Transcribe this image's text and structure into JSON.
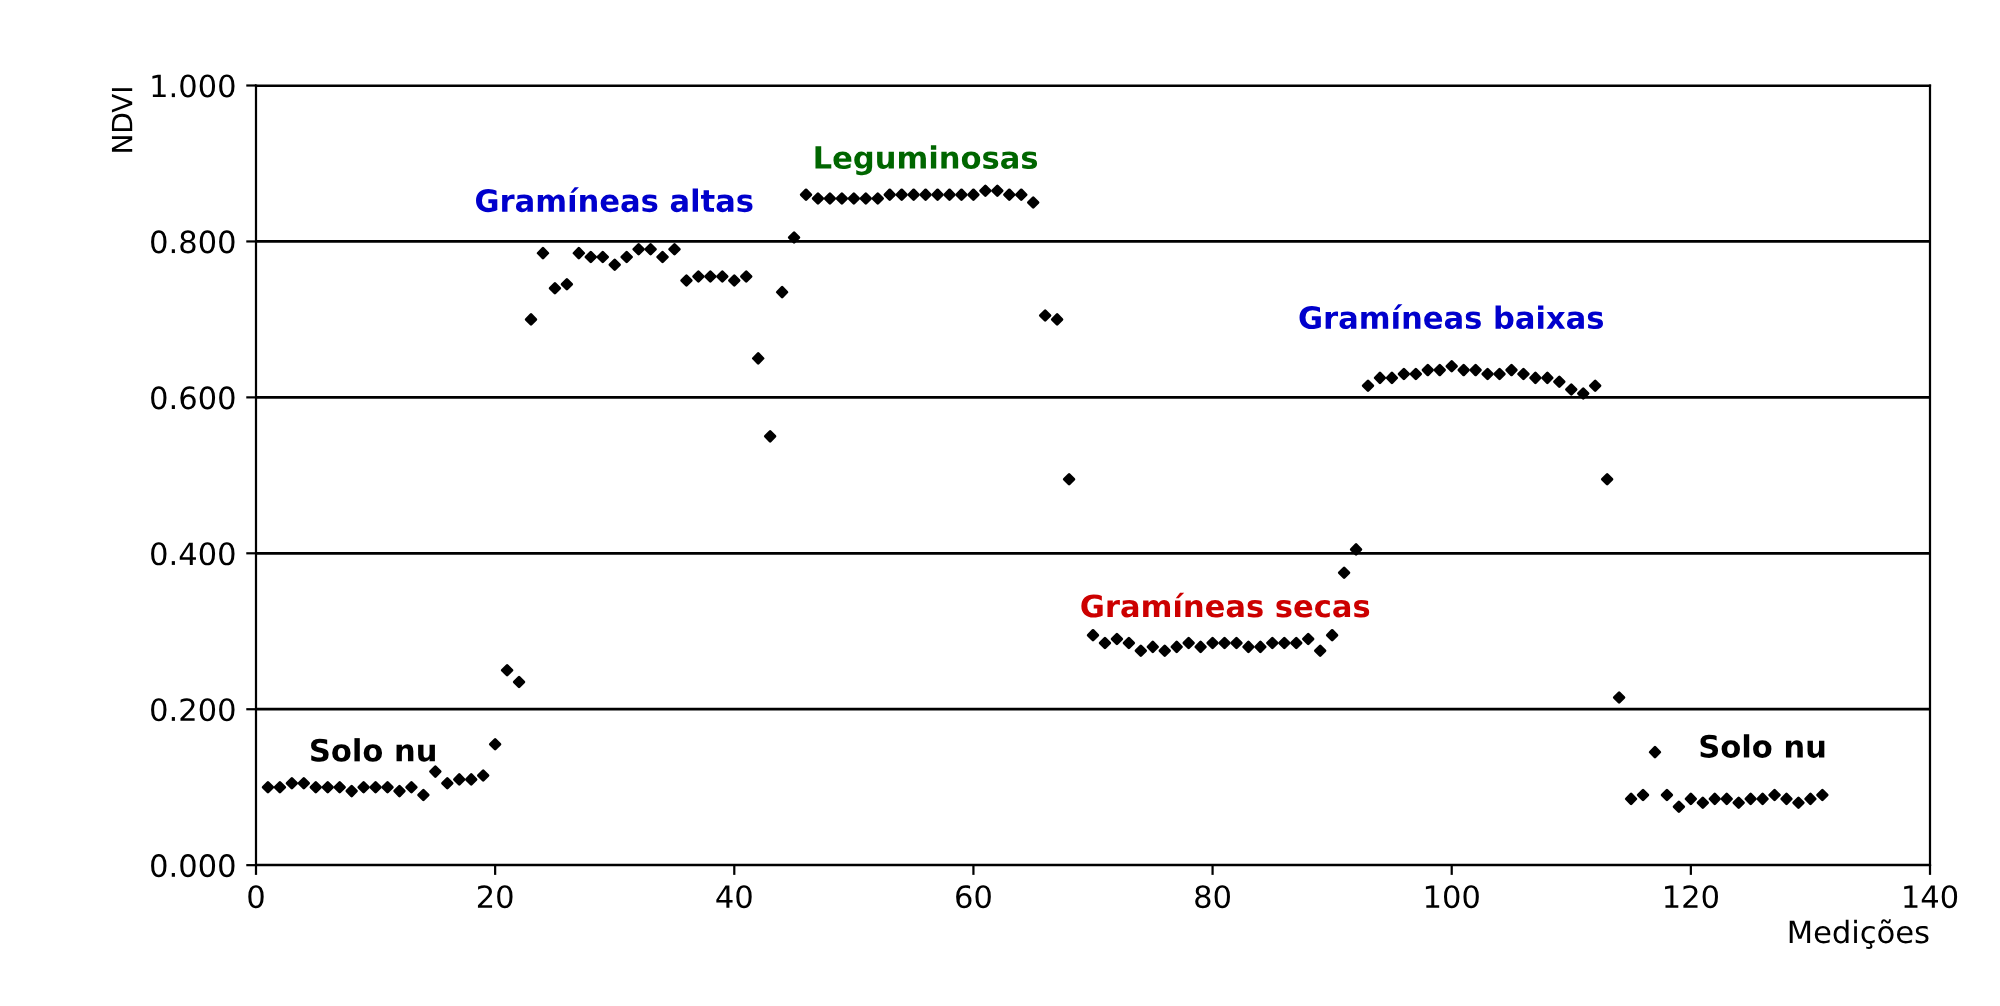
{
  "chart_data": {
    "type": "scatter",
    "xlabel": "Medições",
    "ylabel": "NDVI",
    "xlim": [
      0,
      140
    ],
    "xticks": [
      0,
      20,
      40,
      60,
      80,
      100,
      120,
      140
    ],
    "ylim": [
      0,
      1
    ],
    "yticks": [
      {
        "value": 0,
        "label": "0.000"
      },
      {
        "value": 0.2,
        "label": "0.200"
      },
      {
        "value": 0.4,
        "label": "0.400"
      },
      {
        "value": 0.6,
        "label": "0.600"
      },
      {
        "value": 0.8,
        "label": "0.800"
      },
      {
        "value": 1,
        "label": "1.000"
      }
    ],
    "grid": "y",
    "marker": "diamond",
    "series": [
      {
        "color": "#000000",
        "x": [
          1,
          2,
          3,
          4,
          5,
          6,
          7,
          8,
          9,
          10,
          11,
          12,
          13,
          14,
          15,
          16,
          17,
          18,
          19,
          20,
          21,
          22,
          23,
          24,
          25,
          26,
          27,
          28,
          29,
          30,
          31,
          32,
          33,
          34,
          35,
          36,
          37,
          38,
          39,
          40,
          41,
          42,
          43,
          44,
          45,
          46,
          47,
          48,
          49,
          50,
          51,
          52,
          53,
          54,
          55,
          56,
          57,
          58,
          59,
          60,
          61,
          62,
          63,
          64,
          65,
          66,
          67,
          68,
          70,
          71,
          72,
          73,
          74,
          75,
          76,
          77,
          78,
          79,
          80,
          81,
          82,
          83,
          84,
          85,
          86,
          87,
          88,
          89,
          90,
          91,
          92,
          93,
          94,
          95,
          96,
          97,
          98,
          99,
          100,
          101,
          102,
          103,
          104,
          105,
          106,
          107,
          108,
          109,
          110,
          111,
          112,
          113,
          114,
          115,
          116,
          117,
          118,
          119,
          120,
          121,
          122,
          123,
          124,
          125,
          126,
          127,
          128,
          129,
          130,
          131
        ],
        "values": [
          0.1,
          0.1,
          0.105,
          0.105,
          0.1,
          0.1,
          0.1,
          0.095,
          0.1,
          0.1,
          0.1,
          0.095,
          0.1,
          0.09,
          0.12,
          0.105,
          0.11,
          0.11,
          0.115,
          0.155,
          0.25,
          0.235,
          0.7,
          0.785,
          0.74,
          0.745,
          0.785,
          0.78,
          0.78,
          0.77,
          0.78,
          0.79,
          0.79,
          0.78,
          0.79,
          0.75,
          0.755,
          0.755,
          0.755,
          0.75,
          0.755,
          0.65,
          0.55,
          0.735,
          0.805,
          0.86,
          0.855,
          0.855,
          0.855,
          0.855,
          0.855,
          0.855,
          0.86,
          0.86,
          0.86,
          0.86,
          0.86,
          0.86,
          0.86,
          0.86,
          0.865,
          0.865,
          0.86,
          0.86,
          0.85,
          0.705,
          0.7,
          0.495,
          0.295,
          0.285,
          0.29,
          0.285,
          0.275,
          0.28,
          0.275,
          0.28,
          0.285,
          0.28,
          0.285,
          0.285,
          0.285,
          0.28,
          0.28,
          0.285,
          0.285,
          0.285,
          0.29,
          0.275,
          0.295,
          0.375,
          0.405,
          0.615,
          0.625,
          0.625,
          0.63,
          0.63,
          0.635,
          0.635,
          0.64,
          0.635,
          0.635,
          0.63,
          0.63,
          0.635,
          0.63,
          0.625,
          0.625,
          0.62,
          0.61,
          0.605,
          0.615,
          0.495,
          0.215,
          0.085,
          0.09,
          0.145,
          0.09,
          0.075,
          0.085,
          0.08,
          0.085,
          0.085,
          0.08,
          0.085,
          0.085,
          0.09,
          0.085,
          0.08,
          0.085,
          0.09
        ]
      }
    ],
    "annotations": [
      "Solo nu",
      "Gramíneas altas",
      "Leguminosas",
      "Gramíneas baixas",
      "Gramíneas secas",
      "Solo nu"
    ]
  }
}
